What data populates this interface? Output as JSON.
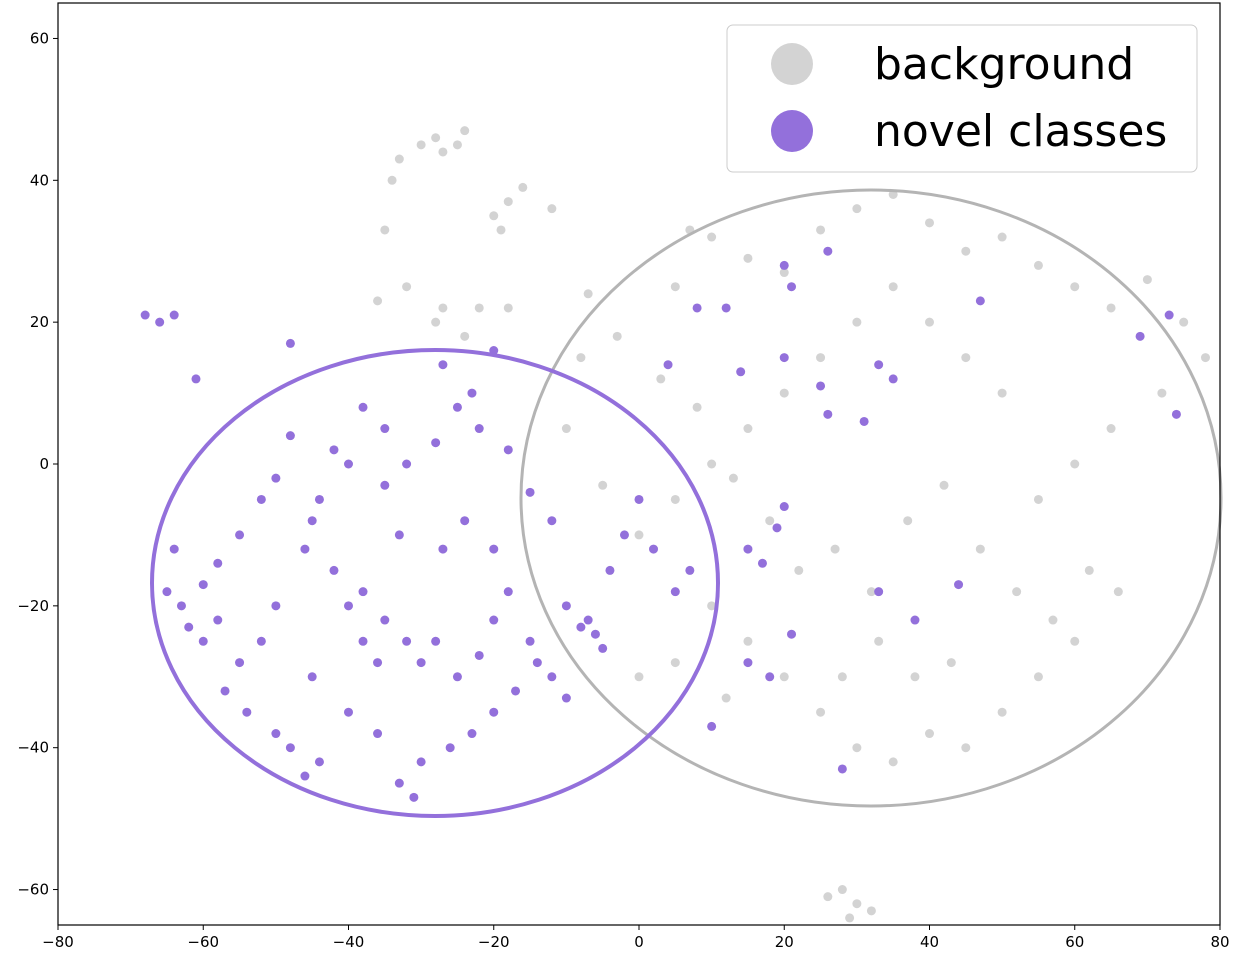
{
  "chart_data": {
    "type": "scatter",
    "legend": "upper right",
    "xlim": [
      -80,
      80
    ],
    "ylim": [
      -65,
      65
    ],
    "xticks": [
      {
        "value": -80,
        "label": "−80"
      },
      {
        "value": -60,
        "label": "−60"
      },
      {
        "value": -40,
        "label": "−40"
      },
      {
        "value": -20,
        "label": "−20"
      },
      0,
      20,
      40,
      60,
      80
    ],
    "yticks": [
      {
        "value": -60,
        "label": "−60"
      },
      {
        "value": -40,
        "label": "−40"
      },
      {
        "value": -20,
        "label": "−20"
      },
      0,
      20,
      40,
      60
    ],
    "series": [
      {
        "name": "background",
        "color": "#d3d3d3",
        "x": [
          -28,
          -25,
          -27,
          -24,
          -30,
          -33,
          -34,
          -20,
          -19,
          -18,
          -16,
          -12,
          -35,
          -32,
          -36,
          -28,
          -27,
          -22,
          -18,
          -24,
          -7,
          5,
          7,
          10,
          15,
          20,
          25,
          30,
          35,
          40,
          45,
          50,
          55,
          60,
          65,
          70,
          75,
          78,
          72,
          65,
          60,
          55,
          50,
          45,
          40,
          35,
          30,
          25,
          20,
          15,
          10,
          5,
          0,
          -5,
          -10,
          -8,
          -3,
          3,
          8,
          13,
          18,
          22,
          27,
          32,
          37,
          42,
          47,
          52,
          57,
          62,
          66,
          60,
          55,
          50,
          45,
          40,
          35,
          30,
          25,
          20,
          15,
          10,
          5,
          0,
          12,
          28,
          33,
          38,
          43,
          28,
          30,
          32,
          26,
          29
        ],
        "y": [
          46,
          45,
          44,
          47,
          45,
          43,
          40,
          35,
          33,
          37,
          39,
          36,
          33,
          25,
          23,
          20,
          22,
          22,
          22,
          18,
          24,
          25,
          33,
          32,
          29,
          27,
          33,
          36,
          38,
          34,
          30,
          32,
          28,
          25,
          22,
          26,
          20,
          15,
          10,
          5,
          0,
          -5,
          10,
          15,
          20,
          25,
          20,
          15,
          10,
          5,
          0,
          -5,
          -10,
          -3,
          5,
          15,
          18,
          12,
          8,
          -2,
          -8,
          -15,
          -12,
          -18,
          -8,
          -3,
          -12,
          -18,
          -22,
          -15,
          -18,
          -25,
          -30,
          -35,
          -40,
          -38,
          -42,
          -40,
          -35,
          -30,
          -25,
          -20,
          -28,
          -30,
          -33,
          -30,
          -25,
          -30,
          -28,
          -60,
          -62,
          -63,
          -61,
          -64
        ]
      },
      {
        "name": "novel classes",
        "color": "#9370db",
        "x": [
          -68,
          -66,
          -64,
          -61,
          -48,
          -65,
          -63,
          -60,
          -62,
          -58,
          -55,
          -52,
          -50,
          -48,
          -45,
          -42,
          -40,
          -38,
          -35,
          -32,
          -30,
          -28,
          -25,
          -22,
          -20,
          -18,
          -15,
          -12,
          -10,
          -8,
          -6,
          -5,
          -7,
          -4,
          -2,
          0,
          2,
          5,
          -12,
          -15,
          -18,
          -22,
          -25,
          -28,
          -32,
          -35,
          -38,
          -40,
          -42,
          -44,
          -46,
          -50,
          -52,
          -55,
          -54,
          -50,
          -48,
          -46,
          -44,
          -40,
          -36,
          -33,
          -31,
          -30,
          -26,
          -23,
          -20,
          -17,
          -14,
          -10,
          -27,
          -24,
          -20,
          -33,
          -36,
          -45,
          -57,
          -60,
          -64,
          -58,
          -27,
          -20,
          -23,
          -35,
          -38,
          4,
          8,
          12,
          20,
          21,
          26,
          14,
          20,
          25,
          33,
          35,
          47,
          69,
          73,
          74,
          31,
          26,
          20,
          19,
          15,
          17,
          21,
          15,
          18,
          10,
          44,
          33,
          38,
          28,
          7
        ],
        "y": [
          21,
          20,
          21,
          12,
          17,
          -18,
          -20,
          -17,
          -23,
          -14,
          -10,
          -5,
          -2,
          4,
          -8,
          -15,
          -20,
          -18,
          -22,
          -25,
          -28,
          -25,
          -30,
          -27,
          -22,
          -18,
          -25,
          -30,
          -20,
          -23,
          -24,
          -26,
          -22,
          -15,
          -10,
          -5,
          -12,
          -18,
          -8,
          -4,
          2,
          5,
          8,
          3,
          0,
          -3,
          8,
          0,
          2,
          -5,
          -12,
          -20,
          -25,
          -28,
          -35,
          -38,
          -40,
          -44,
          -42,
          -35,
          -38,
          -45,
          -47,
          -42,
          -40,
          -38,
          -35,
          -32,
          -28,
          -33,
          -12,
          -8,
          -12,
          -10,
          -28,
          -30,
          -32,
          -25,
          -12,
          -22,
          14,
          16,
          10,
          5,
          -25,
          14,
          22,
          22,
          28,
          25,
          30,
          13,
          15,
          11,
          14,
          12,
          23,
          18,
          21,
          7,
          6,
          7,
          -6,
          -9,
          -12,
          -14,
          -24,
          -28,
          -30,
          -37,
          -17,
          -18,
          -22,
          -43,
          -15
        ]
      }
    ]
  }
}
